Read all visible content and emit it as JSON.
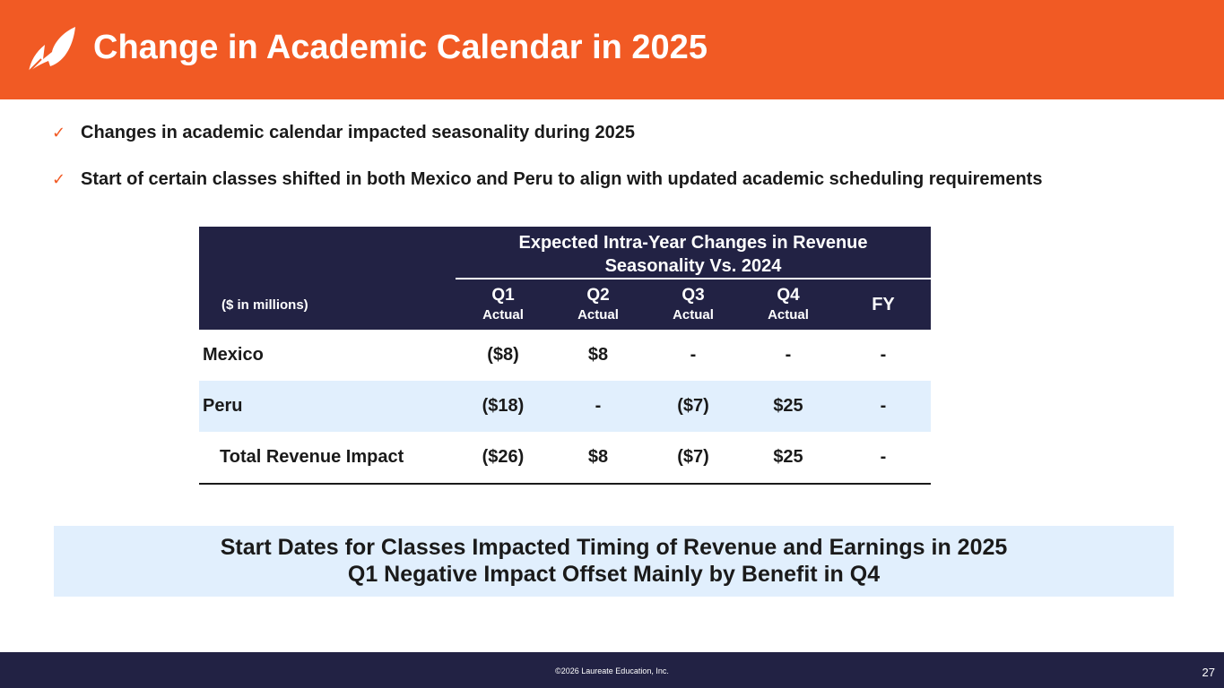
{
  "header": {
    "title": "Change in Academic Calendar in 2025",
    "background_color": "#f15a24",
    "logo_icon": "leaf-logo-icon"
  },
  "bullets": [
    {
      "icon": "check-icon",
      "text": "Changes in academic calendar impacted seasonality during 2025"
    },
    {
      "icon": "check-icon",
      "text": "Start of certain classes shifted in both Mexico and Peru to align with updated academic scheduling requirements"
    }
  ],
  "table": {
    "header_color": "#222244",
    "group_title_line1": "Expected Intra-Year Changes in Revenue",
    "group_title_line2": "Seasonality Vs. 2024",
    "unit_label": "($ in millions)",
    "columns": [
      {
        "label": "Q1",
        "sub": "Actual"
      },
      {
        "label": "Q2",
        "sub": "Actual"
      },
      {
        "label": "Q3",
        "sub": "Actual"
      },
      {
        "label": "Q4",
        "sub": "Actual"
      },
      {
        "label": "FY",
        "sub": ""
      }
    ],
    "rows": [
      {
        "label": "Mexico",
        "values": [
          "($8)",
          "$8",
          "-",
          "-",
          "-"
        ]
      },
      {
        "label": "Peru",
        "values": [
          "($18)",
          "-",
          "($7)",
          "$25",
          "-"
        ]
      },
      {
        "label": "Total Revenue Impact",
        "values": [
          "($26)",
          "$8",
          "($7)",
          "$25",
          "-"
        ]
      }
    ]
  },
  "callout": {
    "line1": "Start Dates for Classes Impacted Timing of Revenue and Earnings in 2025",
    "line2": "Q1 Negative Impact Offset Mainly by Benefit in Q4",
    "background_color": "#e1effd"
  },
  "footer": {
    "copyright": "©2026 Laureate Education, Inc.",
    "page_number": "27",
    "background_color": "#222244"
  }
}
